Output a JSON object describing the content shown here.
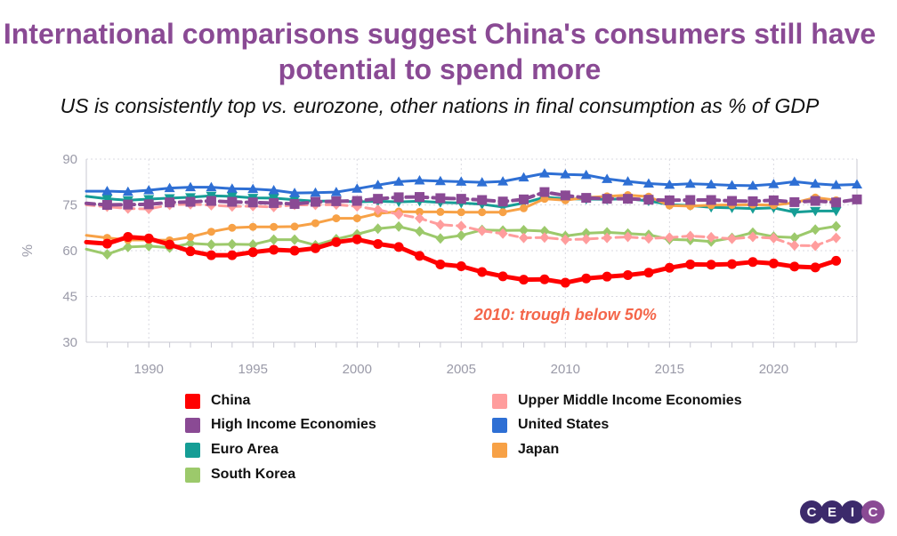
{
  "page": {
    "title": "International comparisons suggest China's consumers still have potential to spend more",
    "subtitle": "US is consistently top vs. eurozone, other nations in final consumption as % of GDP",
    "logo_letters": [
      "C",
      "E",
      "I",
      "C"
    ]
  },
  "chart_data": {
    "type": "line",
    "title": "International comparisons suggest China's consumers still have potential to spend more",
    "subtitle": "US is consistently top vs. eurozone, other nations in final consumption as % of GDP",
    "xlabel": "",
    "ylabel": "%",
    "xlim": [
      1987,
      2024
    ],
    "ylim": [
      30,
      90
    ],
    "yticks": [
      30,
      45,
      60,
      75,
      90
    ],
    "xticks": [
      1990,
      1995,
      2000,
      2005,
      2010,
      2015,
      2020
    ],
    "grid": true,
    "legend_position": "bottom",
    "annotation": {
      "text": "2010: trough below 50%",
      "x": 2010,
      "y": 39,
      "color": "#f4664a"
    },
    "series": [
      {
        "name": "China",
        "color": "#ff0000",
        "marker": "circle",
        "dash": "solid",
        "width": 5,
        "x": [
          1987,
          1988,
          1989,
          1990,
          1991,
          1992,
          1993,
          1994,
          1995,
          1996,
          1997,
          1998,
          1999,
          2000,
          2001,
          2002,
          2003,
          2004,
          2005,
          2006,
          2007,
          2008,
          2009,
          2010,
          2011,
          2012,
          2013,
          2014,
          2015,
          2016,
          2017,
          2018,
          2019,
          2020,
          2021,
          2022,
          2023
        ],
        "values": [
          62.8,
          62.3,
          64.5,
          64.0,
          62.0,
          59.8,
          58.5,
          58.5,
          59.5,
          60.3,
          60.0,
          60.8,
          62.8,
          63.7,
          62.2,
          61.2,
          58.3,
          55.5,
          54.9,
          53.0,
          51.6,
          50.5,
          50.6,
          49.5,
          50.9,
          51.5,
          52.0,
          52.8,
          54.4,
          55.5,
          55.4,
          55.6,
          56.3,
          55.8,
          54.8,
          54.5,
          56.7
        ]
      },
      {
        "name": "Upper Middle Income Economies",
        "color": "#ff9d9d",
        "marker": "diamond",
        "dash": "dashed",
        "width": 3,
        "x": [
          1987,
          1988,
          1989,
          1990,
          1991,
          1992,
          1993,
          1994,
          1995,
          1996,
          1997,
          1998,
          1999,
          2000,
          2001,
          2002,
          2003,
          2004,
          2005,
          2006,
          2007,
          2008,
          2009,
          2010,
          2011,
          2012,
          2013,
          2014,
          2015,
          2016,
          2017,
          2018,
          2019,
          2020,
          2021,
          2022,
          2023
        ],
        "values": [
          75.0,
          74.4,
          73.8,
          73.7,
          75.0,
          75.2,
          74.9,
          74.5,
          74.6,
          74.3,
          75.0,
          75.0,
          75.1,
          74.5,
          73.4,
          71.9,
          70.6,
          68.5,
          68.1,
          66.5,
          65.6,
          64.2,
          64.3,
          63.6,
          63.8,
          64.2,
          64.5,
          64.0,
          64.3,
          64.8,
          64.4,
          63.9,
          64.5,
          64.1,
          61.7,
          61.6,
          64.2
        ]
      },
      {
        "name": "High Income Economies",
        "color": "#8a4a94",
        "marker": "square",
        "dash": "dashed",
        "width": 4,
        "x": [
          1987,
          1988,
          1989,
          1990,
          1991,
          1992,
          1993,
          1994,
          1995,
          1996,
          1997,
          1998,
          1999,
          2000,
          2001,
          2002,
          2003,
          2004,
          2005,
          2006,
          2007,
          2008,
          2009,
          2010,
          2011,
          2012,
          2013,
          2014,
          2015,
          2016,
          2017,
          2018,
          2019,
          2020,
          2021,
          2022,
          2023,
          2024
        ],
        "values": [
          75.5,
          75.0,
          75.1,
          75.2,
          75.8,
          76.0,
          76.3,
          76.0,
          75.8,
          75.6,
          75.3,
          76.0,
          76.2,
          76.3,
          77.0,
          77.5,
          77.6,
          77.2,
          77.0,
          76.6,
          76.1,
          76.8,
          79.2,
          78.1,
          77.3,
          77.0,
          77.0,
          76.7,
          76.5,
          76.6,
          76.6,
          76.3,
          76.2,
          76.5,
          75.9,
          76.3,
          75.8,
          76.8
        ]
      },
      {
        "name": "United States",
        "color": "#2e6fd4",
        "marker": "triangle",
        "dash": "solid",
        "width": 3,
        "x": [
          1987,
          1988,
          1989,
          1990,
          1991,
          1992,
          1993,
          1994,
          1995,
          1996,
          1997,
          1998,
          1999,
          2000,
          2001,
          2002,
          2003,
          2004,
          2005,
          2006,
          2007,
          2008,
          2009,
          2010,
          2011,
          2012,
          2013,
          2014,
          2015,
          2016,
          2017,
          2018,
          2019,
          2020,
          2021,
          2022,
          2023,
          2024
        ],
        "values": [
          79.5,
          79.5,
          79.3,
          79.8,
          80.5,
          80.8,
          80.8,
          80.3,
          80.2,
          79.8,
          78.9,
          79.0,
          79.2,
          80.3,
          81.5,
          82.6,
          83.0,
          82.8,
          82.6,
          82.4,
          82.7,
          84.0,
          85.3,
          85.0,
          84.8,
          83.5,
          82.7,
          82.0,
          81.6,
          81.9,
          81.7,
          81.4,
          81.3,
          81.8,
          82.6,
          81.9,
          81.5,
          81.7
        ]
      },
      {
        "name": "Euro Area",
        "color": "#159d95",
        "marker": "triangle-down",
        "dash": "solid",
        "width": 3,
        "x": [
          1987,
          1988,
          1989,
          1990,
          1991,
          1992,
          1993,
          1994,
          1995,
          1996,
          1997,
          1998,
          1999,
          2000,
          2001,
          2002,
          2003,
          2004,
          2005,
          2006,
          2007,
          2008,
          2009,
          2010,
          2011,
          2012,
          2013,
          2014,
          2015,
          2016,
          2017,
          2018,
          2019,
          2020,
          2021,
          2022,
          2023
        ],
        "values": [
          77.8,
          77.0,
          76.5,
          76.9,
          77.2,
          77.5,
          78.0,
          77.8,
          77.3,
          77.2,
          76.7,
          76.2,
          76.3,
          76.0,
          76.2,
          76.0,
          76.2,
          75.8,
          75.6,
          75.2,
          74.3,
          75.6,
          77.5,
          77.0,
          76.9,
          76.8,
          77.0,
          76.3,
          75.1,
          74.8,
          74.2,
          74.0,
          73.8,
          74.0,
          72.6,
          73.0,
          73.0
        ]
      },
      {
        "name": "Japan",
        "color": "#f7a146",
        "marker": "circle",
        "dash": "solid",
        "width": 3,
        "x": [
          1987,
          1988,
          1989,
          1990,
          1991,
          1992,
          1993,
          1994,
          1995,
          1996,
          1997,
          1998,
          1999,
          2000,
          2001,
          2002,
          2003,
          2004,
          2005,
          2006,
          2007,
          2008,
          2009,
          2010,
          2011,
          2012,
          2013,
          2014,
          2015,
          2016,
          2017,
          2018,
          2019,
          2020,
          2021,
          2022,
          2023
        ],
        "values": [
          65.0,
          64.2,
          63.5,
          63.5,
          63.4,
          64.5,
          66.2,
          67.5,
          67.8,
          67.8,
          67.9,
          69.0,
          70.6,
          70.6,
          72.2,
          72.8,
          72.7,
          72.7,
          72.6,
          72.6,
          72.6,
          73.9,
          77.0,
          76.5,
          77.4,
          77.8,
          78.2,
          77.7,
          74.8,
          74.6,
          74.9,
          75.0,
          75.1,
          74.9,
          75.7,
          77.4,
          76.5
        ]
      },
      {
        "name": "South Korea",
        "color": "#9cc96b",
        "marker": "diamond",
        "dash": "solid",
        "width": 3,
        "x": [
          1987,
          1988,
          1989,
          1990,
          1991,
          1992,
          1993,
          1994,
          1995,
          1996,
          1997,
          1998,
          1999,
          2000,
          2001,
          2002,
          2003,
          2004,
          2005,
          2006,
          2007,
          2008,
          2009,
          2010,
          2011,
          2012,
          2013,
          2014,
          2015,
          2016,
          2017,
          2018,
          2019,
          2020,
          2021,
          2022,
          2023
        ],
        "values": [
          60.5,
          58.8,
          61.2,
          61.5,
          61.0,
          62.4,
          62.0,
          62.1,
          62.0,
          63.6,
          63.6,
          61.8,
          63.8,
          65.4,
          67.2,
          67.9,
          66.3,
          64.0,
          65.0,
          66.8,
          66.6,
          66.7,
          66.4,
          64.8,
          65.7,
          66.0,
          65.6,
          65.2,
          63.7,
          63.5,
          63.0,
          64.2,
          65.9,
          64.6,
          64.3,
          66.9,
          68.0
        ]
      }
    ]
  }
}
